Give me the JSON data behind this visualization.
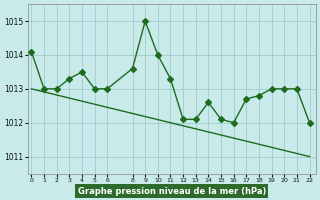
{
  "title": "Graphe pression niveau de la mer (hPa)",
  "bg_color": "#c8eaea",
  "title_bg_color": "#2d6b2d",
  "title_text_color": "#ffffff",
  "line_color": "#1e6b1e",
  "grid_color": "#a0cccc",
  "spine_color": "#888888",
  "hours": [
    0,
    1,
    2,
    3,
    4,
    5,
    6,
    8,
    9,
    10,
    11,
    12,
    13,
    14,
    15,
    16,
    17,
    18,
    19,
    20,
    21,
    22
  ],
  "pressure": [
    1014.1,
    1013.0,
    1013.0,
    1013.3,
    1013.5,
    1013.0,
    1013.0,
    1013.6,
    1015.0,
    1014.0,
    1013.3,
    1012.1,
    1012.1,
    1012.6,
    1012.1,
    1012.0,
    1012.7,
    1012.8,
    1013.0,
    1013.0,
    1013.0,
    1012.0
  ],
  "trend_x": [
    0,
    22
  ],
  "trend_y": [
    1013.0,
    1011.0
  ],
  "ylim": [
    1010.5,
    1015.5
  ],
  "yticks": [
    1011,
    1012,
    1013,
    1014,
    1015
  ],
  "xlim": [
    -0.3,
    22.5
  ],
  "xtick_positions": [
    0,
    1,
    2,
    3,
    4,
    5,
    6,
    8,
    9,
    10,
    11,
    12,
    13,
    14,
    15,
    16,
    17,
    18,
    19,
    20,
    21,
    22
  ],
  "xtick_labels": [
    "0",
    "1",
    "2",
    "3",
    "4",
    "5",
    "6",
    "8",
    "9",
    "10",
    "11",
    "12",
    "13",
    "14",
    "15",
    "16",
    "17",
    "18",
    "19",
    "20",
    "21",
    "22"
  ],
  "linewidth": 1.0,
  "marker_size": 3.0
}
